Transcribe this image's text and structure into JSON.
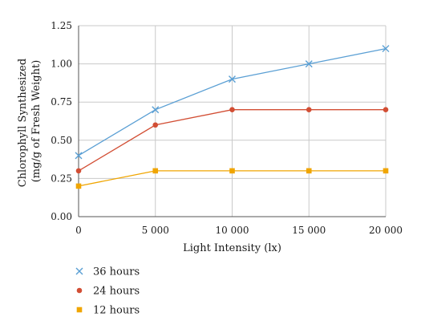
{
  "chart_data": {
    "type": "line",
    "title": "",
    "xlabel": "Light Intensity (lx)",
    "ylabel_lines": [
      "Chlorophyll Synthesized",
      "(mg/g of Fresh Weight)"
    ],
    "x": [
      0,
      5000,
      10000,
      15000,
      20000
    ],
    "x_tick_labels": [
      "0",
      "5 000",
      "10 000",
      "15 000",
      "20 000"
    ],
    "xlim": [
      0,
      20000
    ],
    "ylim": [
      0,
      1.25
    ],
    "y_ticks": [
      0,
      0.25,
      0.5,
      0.75,
      1.0,
      1.25
    ],
    "y_tick_labels": [
      "0.00",
      "0.25",
      "0.50",
      "0.75",
      "1.00",
      "1.25"
    ],
    "grid": true,
    "legend_position": "bottom-left",
    "series": [
      {
        "name": "36 hours",
        "values": [
          0.4,
          0.7,
          0.9,
          1.0,
          1.1
        ],
        "color": "#5a9fd4",
        "marker": "x"
      },
      {
        "name": "24 hours",
        "values": [
          0.3,
          0.6,
          0.7,
          0.7,
          0.7
        ],
        "color": "#d24e34",
        "marker": "circle"
      },
      {
        "name": "12 hours",
        "values": [
          0.2,
          0.3,
          0.3,
          0.3,
          0.3
        ],
        "color": "#f0a500",
        "marker": "square"
      }
    ]
  }
}
